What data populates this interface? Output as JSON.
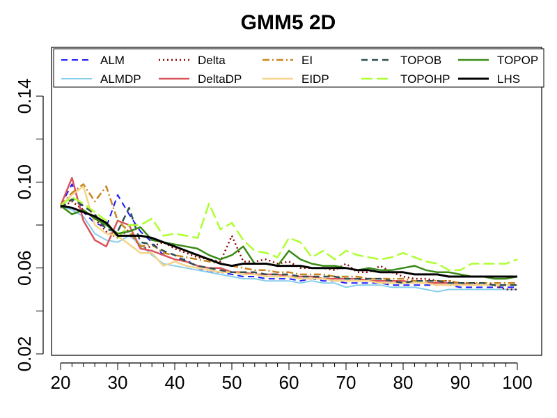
{
  "chart_data": {
    "type": "line",
    "title": "GMM5 2D",
    "xlabel": "",
    "ylabel": "",
    "xlim": [
      20,
      100
    ],
    "ylim": [
      0.0,
      0.16
    ],
    "x_ticks": [
      20,
      30,
      40,
      50,
      60,
      70,
      80,
      90,
      100
    ],
    "x_tick_labels": [
      "20",
      "30",
      "40",
      "50",
      "60",
      "70",
      "80",
      "90",
      "100"
    ],
    "y_ticks": [
      0.02,
      0.06,
      0.1,
      0.14
    ],
    "y_tick_labels": [
      "0.02",
      "0.06",
      "0.10",
      "0.14"
    ],
    "grid": false,
    "legend_position": "top",
    "series": [
      {
        "name": "ALM",
        "color": "#1a1aff",
        "dash": "dashed",
        "width": 2,
        "x": [
          20,
          22,
          24,
          26,
          28,
          30,
          32,
          34,
          36,
          38,
          40,
          42,
          44,
          46,
          48,
          50,
          52,
          54,
          56,
          58,
          60,
          62,
          64,
          66,
          68,
          70,
          72,
          74,
          76,
          78,
          80,
          82,
          84,
          86,
          88,
          90,
          92,
          94,
          96,
          98,
          100
        ],
        "values": [
          0.089,
          0.099,
          0.086,
          0.081,
          0.079,
          0.094,
          0.085,
          0.077,
          0.072,
          0.066,
          0.064,
          0.064,
          0.06,
          0.058,
          0.058,
          0.057,
          0.056,
          0.056,
          0.055,
          0.055,
          0.055,
          0.054,
          0.055,
          0.054,
          0.054,
          0.053,
          0.053,
          0.053,
          0.053,
          0.052,
          0.052,
          0.052,
          0.052,
          0.052,
          0.052,
          0.051,
          0.051,
          0.051,
          0.051,
          0.051,
          0.051
        ]
      },
      {
        "name": "ALMDP",
        "color": "#87ceeb",
        "dash": "solid",
        "width": 2,
        "x": [
          20,
          22,
          24,
          26,
          28,
          30,
          32,
          34,
          36,
          38,
          40,
          42,
          44,
          46,
          48,
          50,
          52,
          54,
          56,
          58,
          60,
          62,
          64,
          66,
          68,
          70,
          72,
          74,
          76,
          78,
          80,
          82,
          84,
          86,
          88,
          90,
          92,
          94,
          96,
          98,
          100
        ],
        "values": [
          0.089,
          0.087,
          0.084,
          0.076,
          0.073,
          0.072,
          0.075,
          0.071,
          0.066,
          0.062,
          0.061,
          0.06,
          0.059,
          0.058,
          0.057,
          0.056,
          0.055,
          0.055,
          0.054,
          0.054,
          0.054,
          0.053,
          0.054,
          0.053,
          0.053,
          0.051,
          0.052,
          0.052,
          0.052,
          0.051,
          0.051,
          0.051,
          0.05,
          0.049,
          0.05,
          0.05,
          0.05,
          0.05,
          0.05,
          0.05,
          0.05
        ]
      },
      {
        "name": "Delta",
        "color": "#8b0000",
        "dash": "dotted",
        "width": 2.5,
        "x": [
          20,
          22,
          24,
          26,
          28,
          30,
          32,
          34,
          36,
          38,
          40,
          42,
          44,
          46,
          48,
          50,
          52,
          54,
          56,
          58,
          60,
          62,
          64,
          66,
          68,
          70,
          72,
          74,
          76,
          78,
          80,
          82,
          84,
          86,
          88,
          90,
          92,
          94,
          96,
          98,
          100
        ],
        "values": [
          0.088,
          0.091,
          0.087,
          0.083,
          0.077,
          0.074,
          0.078,
          0.069,
          0.07,
          0.072,
          0.069,
          0.067,
          0.065,
          0.064,
          0.063,
          0.075,
          0.063,
          0.063,
          0.064,
          0.062,
          0.063,
          0.06,
          0.06,
          0.06,
          0.059,
          0.062,
          0.058,
          0.058,
          0.061,
          0.058,
          0.056,
          0.055,
          0.055,
          0.054,
          0.054,
          0.053,
          0.053,
          0.052,
          0.052,
          0.05,
          0.05
        ]
      },
      {
        "name": "DeltaDP",
        "color": "#d9545a",
        "dash": "solid",
        "width": 2.5,
        "x": [
          20,
          22,
          24,
          26,
          28,
          30,
          32,
          34,
          36,
          38,
          40,
          42,
          44,
          46,
          48,
          50,
          52,
          54,
          56,
          58,
          60,
          62,
          64,
          66,
          68,
          70,
          72,
          74,
          76,
          78,
          80,
          82,
          84,
          86,
          88,
          90,
          92,
          94,
          96,
          98,
          100
        ],
        "values": [
          0.089,
          0.102,
          0.082,
          0.073,
          0.07,
          0.082,
          0.08,
          0.069,
          0.068,
          0.066,
          0.064,
          0.063,
          0.061,
          0.06,
          0.06,
          0.058,
          0.058,
          0.057,
          0.057,
          0.057,
          0.056,
          0.056,
          0.056,
          0.055,
          0.055,
          0.055,
          0.055,
          0.054,
          0.054,
          0.054,
          0.054,
          0.053,
          0.053,
          0.053,
          0.053,
          0.053,
          0.052,
          0.052,
          0.052,
          0.052,
          0.052
        ]
      },
      {
        "name": "EI",
        "color": "#c8841e",
        "dash": "dashdot",
        "width": 2.5,
        "x": [
          20,
          22,
          24,
          26,
          28,
          30,
          32,
          34,
          36,
          38,
          40,
          42,
          44,
          46,
          48,
          50,
          52,
          54,
          56,
          58,
          60,
          62,
          64,
          66,
          68,
          70,
          72,
          74,
          76,
          78,
          80,
          82,
          84,
          86,
          88,
          90,
          92,
          94,
          96,
          98,
          100
        ],
        "values": [
          0.089,
          0.095,
          0.099,
          0.091,
          0.098,
          0.082,
          0.077,
          0.07,
          0.071,
          0.067,
          0.066,
          0.065,
          0.064,
          0.063,
          0.062,
          0.061,
          0.06,
          0.059,
          0.059,
          0.058,
          0.058,
          0.057,
          0.057,
          0.057,
          0.056,
          0.056,
          0.056,
          0.055,
          0.055,
          0.055,
          0.055,
          0.054,
          0.054,
          0.054,
          0.054,
          0.053,
          0.053,
          0.053,
          0.053,
          0.053,
          0.053
        ]
      },
      {
        "name": "EIDP",
        "color": "#f5d38a",
        "dash": "solid",
        "width": 2.5,
        "x": [
          20,
          22,
          24,
          26,
          28,
          30,
          32,
          34,
          36,
          38,
          40,
          42,
          44,
          46,
          48,
          50,
          52,
          54,
          56,
          58,
          60,
          62,
          64,
          66,
          68,
          70,
          72,
          74,
          76,
          78,
          80,
          82,
          84,
          86,
          88,
          90,
          92,
          94,
          96,
          98,
          100
        ],
        "values": [
          0.089,
          0.094,
          0.098,
          0.08,
          0.076,
          0.075,
          0.071,
          0.067,
          0.067,
          0.061,
          0.063,
          0.061,
          0.06,
          0.059,
          0.058,
          0.058,
          0.057,
          0.057,
          0.056,
          0.056,
          0.056,
          0.055,
          0.055,
          0.055,
          0.054,
          0.054,
          0.054,
          0.054,
          0.053,
          0.053,
          0.053,
          0.053,
          0.053,
          0.052,
          0.052,
          0.052,
          0.052,
          0.052,
          0.052,
          0.052,
          0.052
        ]
      },
      {
        "name": "TOPOB",
        "color": "#2f4f4f",
        "dash": "dashed",
        "width": 2.5,
        "x": [
          20,
          22,
          24,
          26,
          28,
          30,
          32,
          34,
          36,
          38,
          40,
          42,
          44,
          46,
          48,
          50,
          52,
          54,
          56,
          58,
          60,
          62,
          64,
          66,
          68,
          70,
          72,
          74,
          76,
          78,
          80,
          82,
          84,
          86,
          88,
          90,
          92,
          94,
          96,
          98,
          100
        ],
        "values": [
          0.088,
          0.092,
          0.089,
          0.085,
          0.078,
          0.077,
          0.088,
          0.072,
          0.071,
          0.068,
          0.066,
          0.063,
          0.061,
          0.06,
          0.059,
          0.058,
          0.058,
          0.058,
          0.057,
          0.057,
          0.057,
          0.056,
          0.056,
          0.056,
          0.056,
          0.055,
          0.055,
          0.055,
          0.055,
          0.054,
          0.053,
          0.054,
          0.054,
          0.054,
          0.053,
          0.053,
          0.053,
          0.053,
          0.052,
          0.052,
          0.052
        ]
      },
      {
        "name": "TOPOHP",
        "color": "#adff2f",
        "dash": "longdash",
        "width": 2.5,
        "x": [
          20,
          22,
          24,
          26,
          28,
          30,
          32,
          34,
          36,
          38,
          40,
          42,
          44,
          46,
          48,
          50,
          52,
          54,
          56,
          58,
          60,
          62,
          64,
          66,
          68,
          70,
          72,
          74,
          76,
          78,
          80,
          82,
          84,
          86,
          88,
          90,
          92,
          94,
          96,
          98,
          100
        ],
        "values": [
          0.089,
          0.093,
          0.09,
          0.086,
          0.082,
          0.074,
          0.08,
          0.08,
          0.083,
          0.075,
          0.076,
          0.075,
          0.074,
          0.09,
          0.078,
          0.081,
          0.073,
          0.068,
          0.067,
          0.065,
          0.074,
          0.072,
          0.065,
          0.068,
          0.064,
          0.068,
          0.066,
          0.065,
          0.064,
          0.065,
          0.067,
          0.065,
          0.063,
          0.062,
          0.059,
          0.059,
          0.062,
          0.062,
          0.062,
          0.062,
          0.064
        ]
      },
      {
        "name": "TOPOP",
        "color": "#3a8a17",
        "dash": "solid",
        "width": 2.5,
        "x": [
          20,
          22,
          24,
          26,
          28,
          30,
          32,
          34,
          36,
          38,
          40,
          42,
          44,
          46,
          48,
          50,
          52,
          54,
          56,
          58,
          60,
          62,
          64,
          66,
          68,
          70,
          72,
          74,
          76,
          78,
          80,
          82,
          84,
          86,
          88,
          90,
          92,
          94,
          96,
          98,
          100
        ],
        "values": [
          0.089,
          0.085,
          0.087,
          0.083,
          0.08,
          0.076,
          0.077,
          0.079,
          0.073,
          0.072,
          0.071,
          0.07,
          0.069,
          0.066,
          0.064,
          0.066,
          0.07,
          0.062,
          0.062,
          0.061,
          0.068,
          0.064,
          0.062,
          0.061,
          0.061,
          0.06,
          0.059,
          0.06,
          0.059,
          0.059,
          0.06,
          0.061,
          0.059,
          0.058,
          0.058,
          0.057,
          0.056,
          0.056,
          0.055,
          0.055,
          0.056
        ]
      },
      {
        "name": "LHS",
        "color": "#000000",
        "dash": "solid",
        "width": 3,
        "x": [
          20,
          22,
          24,
          26,
          28,
          30,
          32,
          34,
          36,
          38,
          40,
          42,
          44,
          46,
          48,
          50,
          52,
          54,
          56,
          58,
          60,
          62,
          64,
          66,
          68,
          70,
          72,
          74,
          76,
          78,
          80,
          82,
          84,
          86,
          88,
          90,
          92,
          94,
          96,
          98,
          100
        ],
        "values": [
          0.089,
          0.088,
          0.086,
          0.084,
          0.081,
          0.075,
          0.075,
          0.075,
          0.074,
          0.072,
          0.07,
          0.068,
          0.066,
          0.064,
          0.062,
          0.061,
          0.062,
          0.062,
          0.062,
          0.061,
          0.061,
          0.061,
          0.06,
          0.06,
          0.06,
          0.06,
          0.059,
          0.059,
          0.058,
          0.058,
          0.058,
          0.057,
          0.057,
          0.057,
          0.056,
          0.056,
          0.056,
          0.056,
          0.056,
          0.056,
          0.056
        ]
      }
    ]
  }
}
